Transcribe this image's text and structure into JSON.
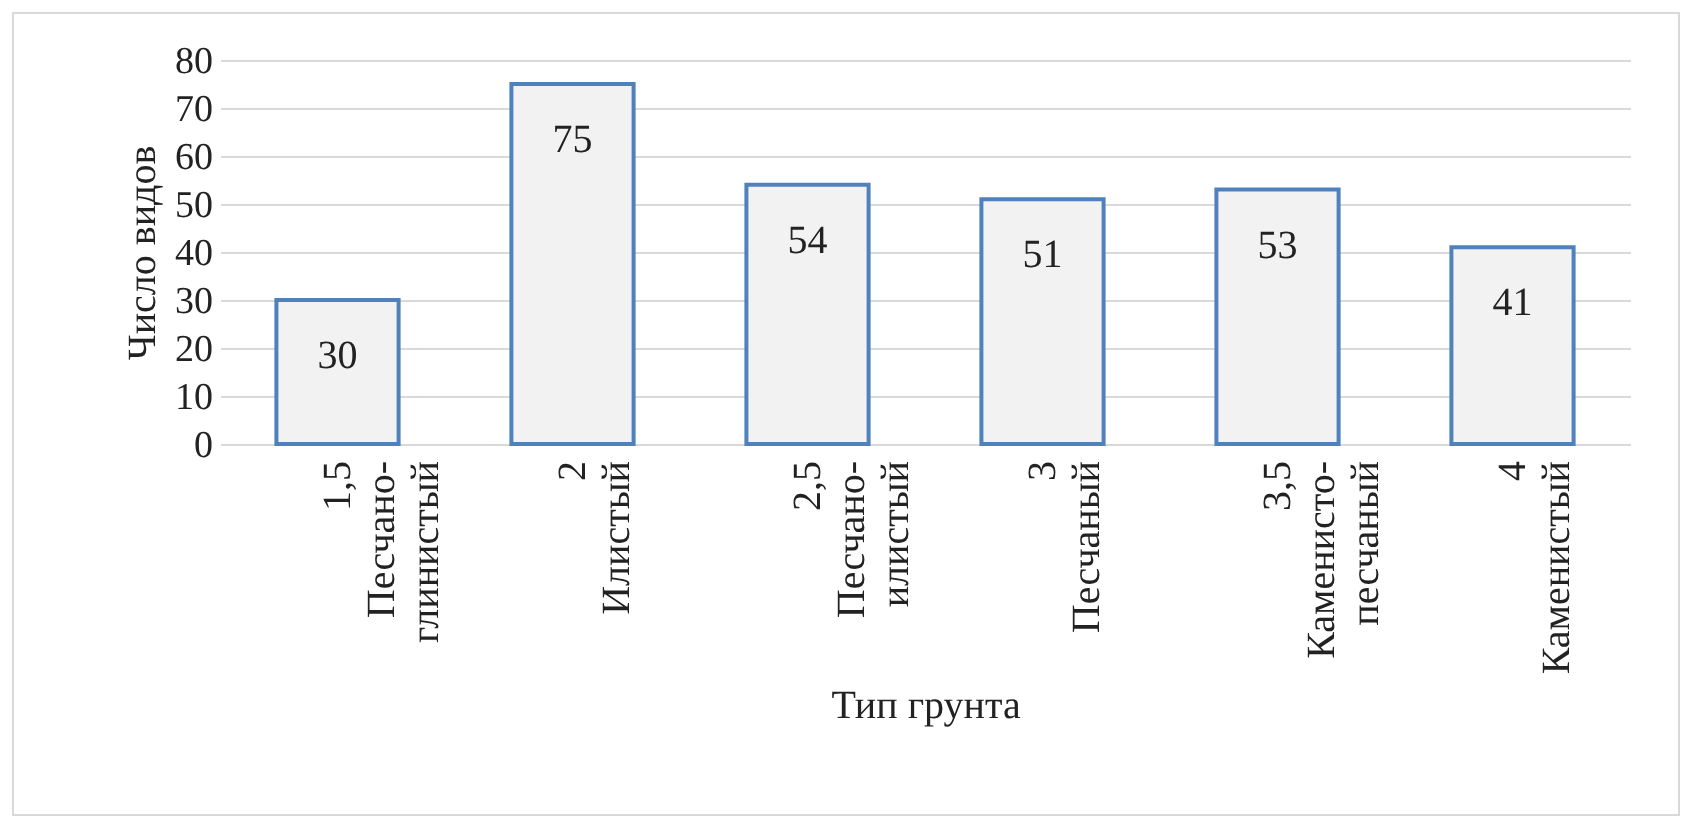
{
  "chart_data": {
    "type": "bar",
    "xlabel": "Тип грунта",
    "ylabel": "Число видов",
    "categories": [
      "1,5\nПесчано-\nглинистый",
      "2\nИлистый",
      "2,5\nПесчано-\nилистый",
      "3\nПесчаный",
      "3,5\nКаменисто-\nпесчаный",
      "4\nКаменистый"
    ],
    "values": [
      30,
      75,
      54,
      51,
      53,
      41
    ],
    "color": "#f2f2f2",
    "ylim": [
      0,
      80
    ],
    "yticks": [
      0,
      10,
      20,
      30,
      40,
      50,
      60,
      70,
      80
    ],
    "grid": "y",
    "data_labels": true
  }
}
